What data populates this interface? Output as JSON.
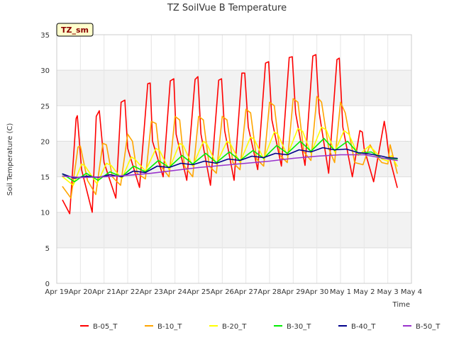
{
  "chart_data": {
    "type": "line",
    "title": "TZ SoilVue B Temperature",
    "xlabel": "Time",
    "ylabel": "Soil Temperature (C)",
    "tag_label": "TZ_sm",
    "xlim": [
      0,
      15
    ],
    "ylim": [
      0,
      35
    ],
    "yticks": [
      0,
      5,
      10,
      15,
      20,
      25,
      30,
      35
    ],
    "ytick_labels": [
      "0",
      "5",
      "10",
      "15",
      "20",
      "25",
      "30",
      "35"
    ],
    "xtick_labels": [
      "Apr 19",
      "Apr 20",
      "Apr 21",
      "Apr 22",
      "Apr 23",
      "Apr 24",
      "Apr 25",
      "Apr 26",
      "Apr 27",
      "Apr 28",
      "Apr 29",
      "Apr 30",
      "May 1",
      "May 2",
      "May 3",
      "May 4"
    ],
    "x_unit": "days since Apr 19",
    "grid": true,
    "legend_position": "bottom",
    "series": [
      {
        "name": "B-05_T",
        "color": "#ff0000",
        "x": [
          0.25,
          0.55,
          0.82,
          0.87,
          1.05,
          1.5,
          1.67,
          1.8,
          2.0,
          2.5,
          2.72,
          2.88,
          3.0,
          3.5,
          3.85,
          3.95,
          4.05,
          4.5,
          4.8,
          4.95,
          5.05,
          5.5,
          5.85,
          5.97,
          6.1,
          6.5,
          6.85,
          6.97,
          7.1,
          7.5,
          7.83,
          7.95,
          8.1,
          8.5,
          8.83,
          8.96,
          9.1,
          9.5,
          9.83,
          9.96,
          10.1,
          10.5,
          10.83,
          10.96,
          11.1,
          11.5,
          11.85,
          11.95,
          12.1,
          12.5,
          12.82,
          12.92,
          13.0,
          13.4,
          13.85,
          13.93,
          14.05,
          14.4
        ],
        "values": [
          11.7,
          9.8,
          23.2,
          23.6,
          16,
          10,
          23.5,
          24.3,
          17,
          12,
          25.5,
          25.8,
          19,
          13.5,
          28.1,
          28.2,
          20,
          15,
          28.5,
          28.8,
          21,
          14.5,
          28.7,
          29.1,
          21,
          13.8,
          28.6,
          28.8,
          21.5,
          14.5,
          29.6,
          29.6,
          22,
          16,
          31,
          31.2,
          23,
          16.5,
          31.8,
          31.9,
          24,
          16.6,
          32,
          32.2,
          24,
          15.5,
          31.5,
          31.7,
          22,
          15,
          21.5,
          21.3,
          19,
          14.3,
          22.8,
          21.2,
          18,
          13.5
        ]
      },
      {
        "name": "B-10_T",
        "color": "#ffa500",
        "x": [
          0.25,
          0.6,
          0.9,
          1.0,
          1.3,
          1.65,
          1.95,
          2.1,
          2.35,
          2.7,
          3.0,
          3.2,
          3.4,
          3.75,
          4.0,
          4.2,
          4.4,
          4.75,
          5.0,
          5.2,
          5.4,
          5.75,
          6.0,
          6.2,
          6.45,
          6.75,
          7.0,
          7.2,
          7.45,
          7.75,
          8.0,
          8.2,
          8.45,
          8.75,
          9.0,
          9.2,
          9.45,
          9.75,
          10.0,
          10.2,
          10.45,
          10.75,
          11.0,
          11.2,
          11.5,
          11.75,
          12.0,
          12.2,
          12.6,
          12.95,
          13.25,
          13.5,
          13.75,
          14.0,
          14.1,
          14.4
        ],
        "values": [
          13.6,
          12.0,
          19.2,
          19.3,
          14.5,
          12.5,
          19.7,
          19.5,
          15,
          13.8,
          21,
          20,
          15.5,
          14.7,
          22.8,
          22.5,
          16.5,
          15,
          23.5,
          23,
          16.5,
          15,
          23.5,
          23,
          16.5,
          15.5,
          23.5,
          23,
          17,
          16,
          24.5,
          24,
          17.5,
          16.5,
          25.5,
          25,
          18,
          17,
          26,
          25.5,
          18.5,
          17.3,
          26.3,
          25.5,
          19,
          17,
          25.5,
          24,
          17,
          16.7,
          19.5,
          18,
          17,
          16.8,
          19.5,
          15.5
        ]
      },
      {
        "name": "B-20_T",
        "color": "#ffff00",
        "x": [
          0.25,
          0.7,
          1.05,
          1.2,
          1.7,
          2.1,
          2.3,
          2.75,
          3.15,
          3.3,
          3.75,
          4.2,
          4.35,
          4.75,
          5.2,
          5.35,
          5.75,
          6.2,
          6.35,
          6.75,
          7.2,
          7.35,
          7.75,
          8.2,
          8.35,
          8.75,
          9.2,
          9.35,
          9.75,
          10.2,
          10.4,
          10.75,
          11.2,
          11.4,
          11.75,
          12.15,
          12.35,
          12.75,
          13.2,
          13.4,
          13.75,
          14.0,
          14.15,
          14.4
        ],
        "values": [
          15.0,
          13.8,
          16.8,
          16.5,
          14.0,
          16.9,
          16.6,
          14.7,
          17.8,
          17.5,
          15.8,
          19.0,
          18.7,
          16.0,
          19.7,
          19.4,
          16.5,
          20.0,
          19.6,
          16.8,
          20.0,
          19.6,
          17.0,
          20.6,
          20.3,
          17.5,
          21.3,
          21.0,
          18.0,
          21.8,
          21.4,
          18.3,
          22.0,
          21.6,
          18.5,
          21.5,
          21.0,
          18.0,
          19.3,
          18.8,
          17.5,
          17.2,
          18.0,
          16.5
        ]
      },
      {
        "name": "B-30_T",
        "color": "#00ee00",
        "x": [
          0.25,
          0.75,
          1.25,
          1.75,
          2.25,
          2.75,
          3.25,
          3.75,
          4.3,
          4.75,
          5.3,
          5.75,
          6.3,
          6.75,
          7.3,
          7.75,
          8.3,
          8.75,
          9.3,
          9.75,
          10.3,
          10.75,
          11.3,
          11.75,
          12.3,
          12.75,
          13.3,
          13.75,
          14.0,
          14.4
        ],
        "values": [
          15.4,
          14.3,
          15.5,
          14.5,
          15.7,
          15.0,
          16.5,
          15.7,
          17.3,
          16.3,
          18.0,
          16.8,
          18.3,
          17.0,
          18.5,
          17.3,
          18.7,
          17.6,
          19.4,
          18.3,
          20.0,
          18.6,
          20.4,
          18.7,
          20.0,
          18.3,
          18.5,
          17.6,
          17.6,
          17.5
        ]
      },
      {
        "name": "B-40_T",
        "color": "#00008b",
        "x": [
          0.25,
          0.75,
          1.25,
          1.75,
          2.25,
          2.75,
          3.25,
          3.75,
          4.25,
          4.75,
          5.25,
          5.75,
          6.25,
          6.75,
          7.25,
          7.75,
          8.25,
          8.75,
          9.25,
          9.75,
          10.25,
          10.75,
          11.25,
          11.75,
          12.25,
          12.75,
          13.25,
          13.75,
          14.0,
          14.4
        ],
        "values": [
          15.4,
          14.8,
          15.1,
          14.9,
          15.3,
          15.0,
          15.8,
          15.6,
          16.5,
          16.3,
          16.9,
          16.7,
          17.2,
          16.9,
          17.5,
          17.3,
          17.9,
          17.7,
          18.3,
          18.1,
          18.8,
          18.5,
          19.1,
          18.8,
          18.9,
          18.4,
          18.2,
          17.9,
          17.7,
          17.6
        ]
      },
      {
        "name": "B-50_T",
        "color": "#9932cc",
        "x": [
          0.25,
          1.0,
          2.0,
          3.0,
          4.0,
          5.0,
          6.0,
          7.0,
          8.0,
          9.0,
          10.0,
          11.0,
          12.0,
          13.0,
          13.5,
          14.0,
          14.4
        ],
        "values": [
          15.1,
          14.9,
          15.0,
          15.2,
          15.5,
          15.9,
          16.3,
          16.6,
          16.9,
          17.2,
          17.6,
          17.9,
          18.1,
          18.1,
          17.8,
          17.5,
          17.3
        ]
      }
    ]
  }
}
